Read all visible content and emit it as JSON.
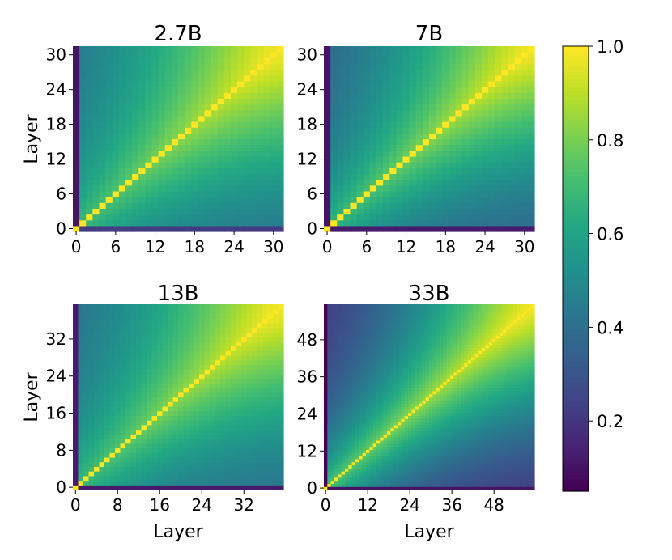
{
  "chart_data": {
    "type": "heatmap",
    "colormap": "viridis",
    "colorbar": {
      "range": [
        0.05,
        1.0
      ],
      "ticks": [
        0.2,
        0.4,
        0.6,
        0.8,
        1.0
      ],
      "tick_labels": [
        "0.2",
        "0.4",
        "0.6",
        "0.8",
        "1.0"
      ]
    },
    "panels": [
      {
        "title": "2.7B",
        "n_layers": 32,
        "xlabel": "",
        "ylabel": "Layer",
        "xticks": [
          0,
          6,
          12,
          18,
          24,
          30
        ],
        "yticks": [
          0,
          6,
          12,
          18,
          24,
          30
        ],
        "model": {
          "decay": 0.05,
          "floor": 0.3,
          "cap": 0.55,
          "edge_col": 0.1,
          "edge_row": 0.22
        }
      },
      {
        "title": "7B",
        "n_layers": 32,
        "xlabel": "",
        "ylabel": "",
        "xticks": [
          0,
          6,
          12,
          18,
          24,
          30
        ],
        "yticks": [
          0,
          6,
          12,
          18,
          24,
          30
        ],
        "model": {
          "decay": 0.06,
          "floor": 0.27,
          "cap": 0.55,
          "edge_col": 0.1,
          "edge_row": 0.12
        }
      },
      {
        "title": "13B",
        "n_layers": 40,
        "xlabel": "Layer",
        "ylabel": "Layer",
        "xticks": [
          0,
          8,
          16,
          24,
          32
        ],
        "yticks": [
          0,
          8,
          16,
          24,
          32
        ],
        "model": {
          "decay": 0.045,
          "floor": 0.3,
          "cap": 0.55,
          "edge_col": 0.12,
          "edge_row": 0.12
        }
      },
      {
        "title": "33B",
        "n_layers": 60,
        "xlabel": "Layer",
        "ylabel": "",
        "xticks": [
          0,
          12,
          24,
          36,
          48
        ],
        "yticks": [
          0,
          12,
          24,
          36,
          48
        ],
        "model": {
          "decay": 0.035,
          "floor": 0.1,
          "cap": 0.7,
          "edge_col": 0.05,
          "edge_row": 0.1
        }
      }
    ]
  }
}
